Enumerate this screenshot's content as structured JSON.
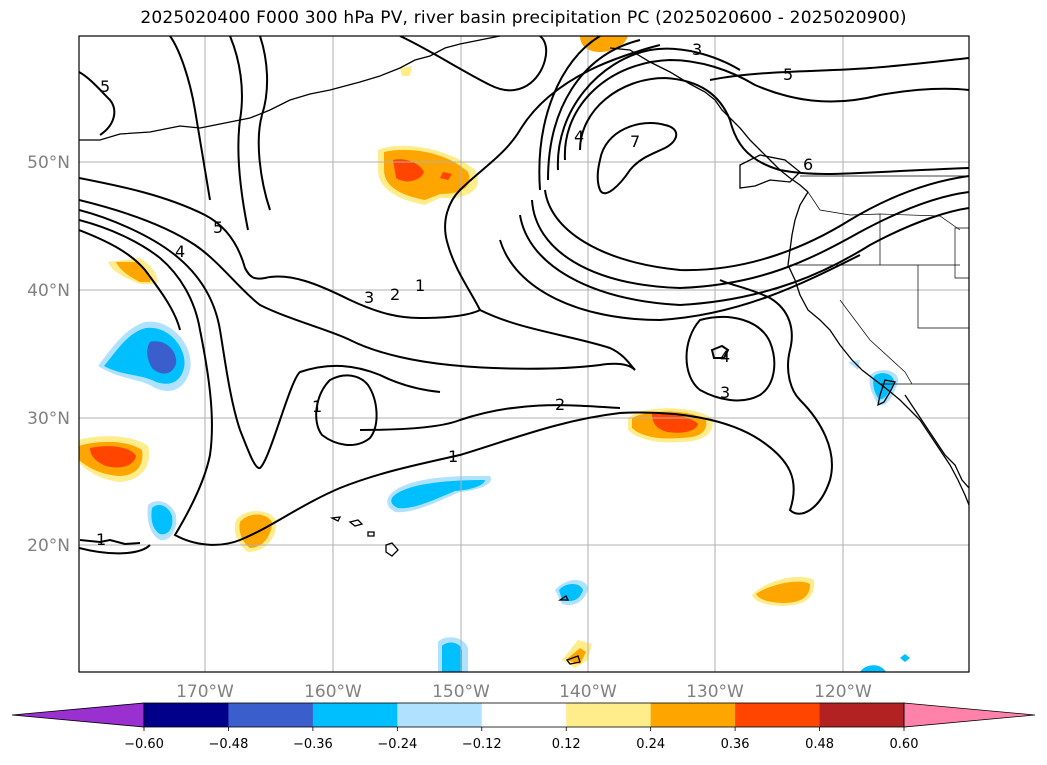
{
  "title": "2025020400 F000 300 hPa PV, river basin precipitation PC (2025020600 - 2025020900)",
  "lat_labels": [
    "50°N",
    "40°N",
    "30°N",
    "20°N"
  ],
  "lon_labels": [
    "170°W",
    "160°W",
    "150°W",
    "140°W",
    "130°W",
    "120°W"
  ],
  "contour_labels": [
    "1",
    "2",
    "3",
    "4",
    "5",
    "6",
    "7"
  ],
  "colorbar": {
    "tick_labels": [
      "−0.60",
      "−0.48",
      "−0.36",
      "−0.24",
      "−0.12",
      "0.12",
      "0.24",
      "0.36",
      "0.48",
      "0.60"
    ],
    "colors": [
      "#9b30d0",
      "#00008b",
      "#3a5fcd",
      "#00bfff",
      "#b0e2ff",
      "#ffffff",
      "#ffec8b",
      "#ffa500",
      "#ff4500",
      "#b22222",
      "#ff82ab"
    ]
  },
  "palette": {
    "frame": "#000000",
    "grid": "#b0b0b0",
    "contour": "#000000",
    "coast": "#000000"
  }
}
